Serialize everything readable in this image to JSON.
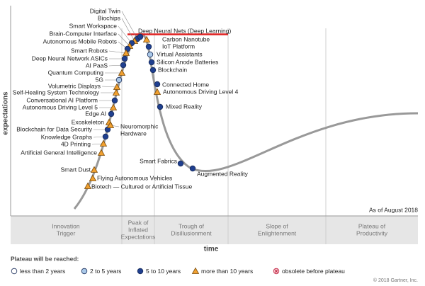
{
  "y_axis_label": "expectations",
  "x_axis_label": "time",
  "as_of": "As of August 2018",
  "phases": [
    [
      "Innovation",
      "Trigger"
    ],
    [
      "Peak of",
      "Inflated",
      "Expectations"
    ],
    [
      "Trough of",
      "Disillusionment"
    ],
    [
      "Slope of",
      "Enlightenment"
    ],
    [
      "Plateau of",
      "Productivity"
    ]
  ],
  "legend": {
    "title": "Plateau will be reached:",
    "items": [
      {
        "label": "less than 2 years",
        "marker": "open"
      },
      {
        "label": "2 to 5 years",
        "marker": "light"
      },
      {
        "label": "5 to 10 years",
        "marker": "dark"
      },
      {
        "label": "more than 10 years",
        "marker": "triangle"
      },
      {
        "label": "obsolete before plateau",
        "marker": "obsolete"
      }
    ]
  },
  "technologies": [
    {
      "lines": [
        "Digital Twin"
      ],
      "marker": "dark"
    },
    {
      "lines": [
        "Biochips"
      ],
      "marker": "triangle"
    },
    {
      "lines": [
        "Smart Workspace"
      ],
      "marker": "dark"
    },
    {
      "lines": [
        "Brain-Computer Interface"
      ],
      "marker": "triangle"
    },
    {
      "lines": [
        "Autonomous Mobile Robots"
      ],
      "marker": "dark"
    },
    {
      "lines": [
        "Smart Robots"
      ],
      "marker": "triangle"
    },
    {
      "lines": [
        "Deep Neural Network ASICs"
      ],
      "marker": "dark"
    },
    {
      "lines": [
        "AI PaaS"
      ],
      "marker": "dark"
    },
    {
      "lines": [
        "Quantum Computing"
      ],
      "marker": "triangle"
    },
    {
      "lines": [
        "5G"
      ],
      "marker": "light"
    },
    {
      "lines": [
        "Volumetric Displays"
      ],
      "marker": "triangle"
    },
    {
      "lines": [
        "Self-Healing System Technology"
      ],
      "marker": "triangle"
    },
    {
      "lines": [
        "Conversational AI Platform"
      ],
      "marker": "dark"
    },
    {
      "lines": [
        "Autonomous Driving Level 5"
      ],
      "marker": "triangle"
    },
    {
      "lines": [
        "Edge AI"
      ],
      "marker": "dark"
    },
    {
      "lines": [
        "Exoskeleton"
      ],
      "marker": "triangle"
    },
    {
      "lines": [
        "Blockchain for Data Security"
      ],
      "marker": "dark"
    },
    {
      "lines": [
        "Neuromorphic",
        "Hardware"
      ],
      "marker": "triangle"
    },
    {
      "lines": [
        "Knowledge Graphs"
      ],
      "marker": "dark"
    },
    {
      "lines": [
        "4D Printing"
      ],
      "marker": "triangle"
    },
    {
      "lines": [
        "Artificial General Intelligence"
      ],
      "marker": "triangle"
    },
    {
      "lines": [
        "Smart Dust"
      ],
      "marker": "triangle"
    },
    {
      "lines": [
        "Flying Autonomous Vehicles"
      ],
      "marker": "triangle"
    },
    {
      "lines": [
        "Biotech — Cultured or Artificial Tissue"
      ],
      "marker": "triangle"
    },
    {
      "lines": [
        "Deep Neural Nets (Deep Learning)"
      ],
      "marker": "dark"
    },
    {
      "lines": [
        "Carbon Nanotube"
      ],
      "marker": "triangle"
    },
    {
      "lines": [
        "IoT Platform"
      ],
      "marker": "dark"
    },
    {
      "lines": [
        "Virtual Assistants"
      ],
      "marker": "light"
    },
    {
      "lines": [
        "Silicon Anode Batteries"
      ],
      "marker": "dark"
    },
    {
      "lines": [
        "Blockchain"
      ],
      "marker": "dark"
    },
    {
      "lines": [
        "Connected Home"
      ],
      "marker": "dark"
    },
    {
      "lines": [
        "Autonomous Driving Level 4"
      ],
      "marker": "triangle"
    },
    {
      "lines": [
        "Mixed Reality"
      ],
      "marker": "dark"
    },
    {
      "lines": [
        "Smart Fabrics"
      ],
      "marker": "dark"
    },
    {
      "lines": [
        "Augmented Reality"
      ],
      "marker": "dark"
    }
  ],
  "copyright": "© 2018 Gartner, Inc."
}
